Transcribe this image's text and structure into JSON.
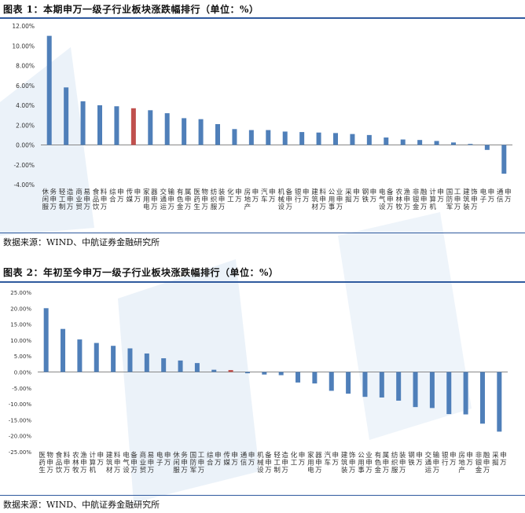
{
  "colors": {
    "bar": "#4f7fb9",
    "highlight": "#c0504d",
    "rule": "#2f5a9e",
    "watermark": "#d8e6f2"
  },
  "figure1": {
    "title": "图表 1：本期申万一级子行业板块涨跌幅排行（单位：%）",
    "source": "数据来源：WIND、中航证券金融研究所"
  },
  "figure2": {
    "title": "图表 2：年初至今申万一级子行业板块涨跌幅排行（单位：%）",
    "source": "数据来源：WIND、中航证券金融研究所"
  },
  "chart_data": [
    {
      "type": "bar",
      "title": "",
      "xlabel": "",
      "ylabel": "",
      "ylim": [
        -4,
        12
      ],
      "yticks": [
        "12.00%",
        "10.00%",
        "8.00%",
        "6.00%",
        "4.00%",
        "2.00%",
        "0.00%",
        "-2.00%",
        "-4.00%"
      ],
      "ytick_values": [
        12,
        10,
        8,
        6,
        4,
        2,
        0,
        -2,
        -4
      ],
      "grid": false,
      "highlight_category": "传媒申万",
      "categories": [
        "休闲服务申万",
        "轻工制造申万",
        "商业贸易申万",
        "食品饮料申万",
        "综合申万",
        "传媒申万",
        "家用电器申万",
        "交通运输申万",
        "有色金属申万",
        "医药生物申万",
        "纺织服装申万",
        "化工申万",
        "房地产申万",
        "汽车申万",
        "机械设备申万",
        "银行申万",
        "建筑材料申万",
        "公用事业申万",
        "采掘申万",
        "钢铁申万",
        "电气设备申万",
        "农林牧渔申万",
        "非银金融申万",
        "计算机申万",
        "国防军工申万",
        "建筑装饰申万",
        "电子申万",
        "通信申万"
      ],
      "values": [
        11.0,
        5.8,
        4.4,
        4.0,
        3.9,
        3.7,
        3.5,
        3.2,
        2.7,
        2.6,
        2.1,
        1.6,
        1.5,
        1.5,
        1.35,
        1.3,
        1.25,
        1.2,
        1.1,
        1.0,
        0.75,
        0.55,
        0.5,
        0.4,
        0.25,
        0.1,
        -0.5,
        -2.9
      ]
    },
    {
      "type": "bar",
      "title": "",
      "xlabel": "",
      "ylabel": "",
      "ylim": [
        -25,
        25
      ],
      "yticks": [
        "25.00%",
        "20.00%",
        "15.00%",
        "10.00%",
        "5.00%",
        "0.00%",
        "-5.00%",
        "-10.00%",
        "-15.00%",
        "-20.00%",
        "-25.00%"
      ],
      "ytick_values": [
        25,
        20,
        15,
        10,
        5,
        0,
        -5,
        -10,
        -15,
        -20,
        -25
      ],
      "grid": false,
      "highlight_category": "传媒申万",
      "categories": [
        "医药生物申万",
        "食品饮料申万",
        "农林牧渔申万",
        "计算机申万",
        "建筑材料申万",
        "电气设备申万",
        "商业贸易申万",
        "电子申万",
        "休闲服务申万",
        "国防军工申万",
        "综合申万",
        "传媒申万",
        "通信申万",
        "机械设备申万",
        "轻工制造申万",
        "化工申万",
        "家用电器申万",
        "汽车申万",
        "建筑装饰申万",
        "公用事业申万",
        "有色金属申万",
        "纺织服装申万",
        "钢铁申万",
        "交通运输申万",
        "银行申万",
        "房地产申万",
        "非银金融申万",
        "采掘申万"
      ],
      "values": [
        20.0,
        13.5,
        10.2,
        9.1,
        8.2,
        7.4,
        5.8,
        4.3,
        3.6,
        2.8,
        0.7,
        0.6,
        -0.4,
        -0.8,
        -1.0,
        -3.3,
        -3.6,
        -5.9,
        -6.8,
        -7.8,
        -8.0,
        -9.0,
        -11.0,
        -11.3,
        -13.2,
        -13.3,
        -16.2,
        -18.7
      ]
    }
  ]
}
